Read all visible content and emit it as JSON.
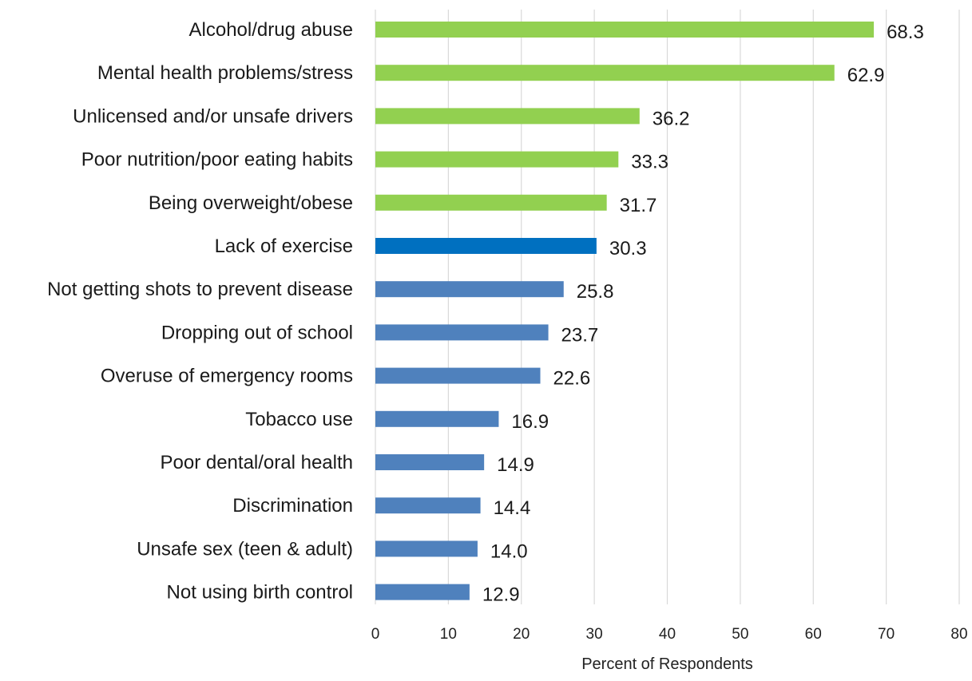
{
  "chart_data": {
    "type": "bar",
    "orientation": "horizontal",
    "title": "",
    "xlabel": "Percent of Respondents",
    "ylabel": "",
    "xlim": [
      0,
      80
    ],
    "x_ticks": [
      0,
      10,
      20,
      30,
      40,
      50,
      60,
      70,
      80
    ],
    "x_tick_labels": [
      "0",
      "10",
      "20",
      "30",
      "40",
      "50",
      "60",
      "70",
      "80"
    ],
    "grid": "vertical",
    "legend": "none",
    "categories": [
      "Alcohol/drug abuse",
      "Mental health problems/stress",
      "Unlicensed and/or unsafe drivers",
      "Poor nutrition/poor eating habits",
      "Being overweight/obese",
      "Lack of exercise",
      "Not getting shots to prevent disease",
      "Dropping out of school",
      "Overuse of emergency rooms",
      "Tobacco use",
      "Poor dental/oral health",
      "Discrimination",
      "Unsafe sex (teen & adult)",
      "Not using birth control"
    ],
    "values": [
      68.3,
      62.9,
      36.2,
      33.3,
      31.7,
      30.3,
      25.8,
      23.7,
      22.6,
      16.9,
      14.9,
      14.4,
      14.0,
      12.9
    ],
    "value_labels": [
      "68.3",
      "62.9",
      "36.2",
      "33.3",
      "31.7",
      "30.3",
      "25.8",
      "23.7",
      "22.6",
      "16.9",
      "14.9",
      "14.4",
      "14.0",
      "12.9"
    ],
    "bar_colors": [
      "#92d050",
      "#92d050",
      "#92d050",
      "#92d050",
      "#92d050",
      "#0070c0",
      "#4f81bd",
      "#4f81bd",
      "#4f81bd",
      "#4f81bd",
      "#4f81bd",
      "#4f81bd",
      "#4f81bd",
      "#4f81bd"
    ],
    "colors": {
      "green": "#92d050",
      "dark_blue": "#0070c0",
      "blue": "#4f81bd",
      "gridline": "#d9d9d9",
      "axis_line": "#d9d9d9"
    }
  }
}
